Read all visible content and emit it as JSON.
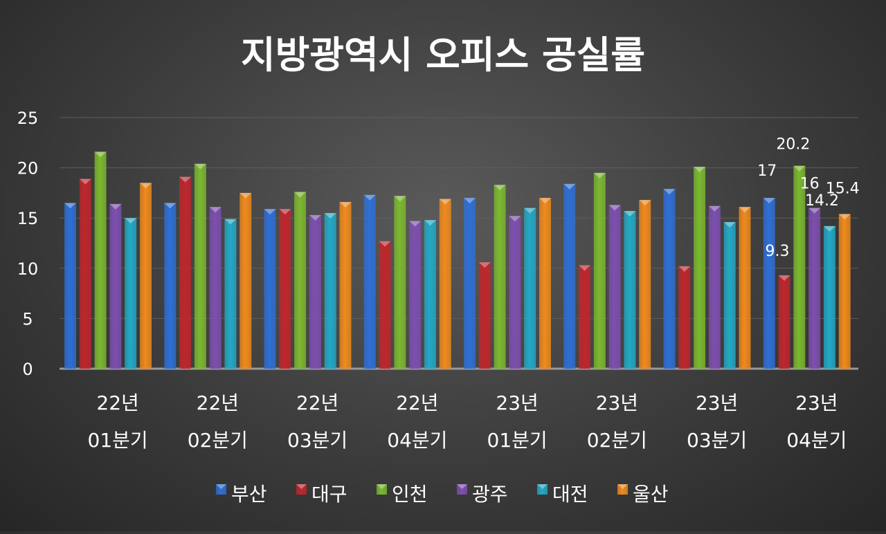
{
  "chart_data": {
    "type": "bar",
    "title": "지방광역시 오피스 공실률",
    "xlabel": "",
    "ylabel": "",
    "ylim": [
      0,
      25
    ],
    "yticks": [
      "0",
      "5",
      "10",
      "15",
      "20",
      "25"
    ],
    "grid": true,
    "legend_position": "bottom",
    "categories": [
      [
        "22년",
        "01분기"
      ],
      [
        "22년",
        "02분기"
      ],
      [
        "22년",
        "03분기"
      ],
      [
        "22년",
        "04분기"
      ],
      [
        "23년",
        "01분기"
      ],
      [
        "23년",
        "02분기"
      ],
      [
        "23년",
        "03분기"
      ],
      [
        "23년",
        "04분기"
      ]
    ],
    "series": [
      {
        "name": "부산",
        "color": "#2e6fd6",
        "values": [
          16.5,
          16.5,
          15.9,
          17.3,
          17.0,
          18.4,
          17.9,
          17.0
        ]
      },
      {
        "name": "대구",
        "color": "#c0262c",
        "values": [
          18.9,
          19.1,
          15.9,
          12.7,
          10.6,
          10.3,
          10.2,
          9.3
        ]
      },
      {
        "name": "인천",
        "color": "#7cb82f",
        "values": [
          21.6,
          20.4,
          17.6,
          17.2,
          18.3,
          19.5,
          20.1,
          20.2
        ]
      },
      {
        "name": "광주",
        "color": "#7d4fb0",
        "values": [
          16.4,
          16.1,
          15.3,
          14.7,
          15.2,
          16.3,
          16.2,
          16.0
        ]
      },
      {
        "name": "대전",
        "color": "#22a9c6",
        "values": [
          15.0,
          14.9,
          15.5,
          14.8,
          16.0,
          15.7,
          14.6,
          14.2
        ]
      },
      {
        "name": "울산",
        "color": "#f08a1c",
        "values": [
          18.5,
          17.5,
          16.6,
          16.9,
          17.0,
          16.8,
          16.1,
          15.4
        ]
      }
    ],
    "data_labels": [
      {
        "series": "부산",
        "category_index": 7,
        "text": "17"
      },
      {
        "series": "대구",
        "category_index": 7,
        "text": "9.3"
      },
      {
        "series": "인천",
        "category_index": 7,
        "text": "20.2"
      },
      {
        "series": "광주",
        "category_index": 7,
        "text": "16"
      },
      {
        "series": "대전",
        "category_index": 7,
        "text": "14.2"
      },
      {
        "series": "울산",
        "category_index": 7,
        "text": "15.4"
      }
    ]
  }
}
